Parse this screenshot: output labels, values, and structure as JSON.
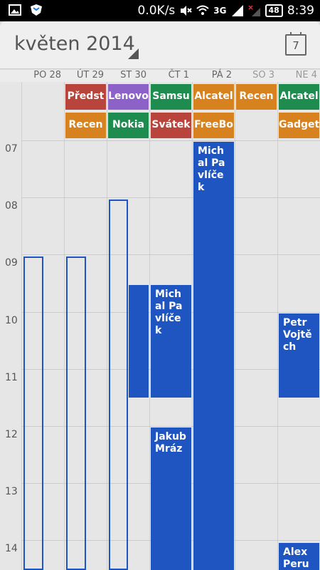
{
  "status_bar": {
    "speed": "0.0K/s",
    "network": "3G",
    "battery": "48",
    "time": "8:39"
  },
  "header": {
    "title": "květen 2014",
    "today_day": "7"
  },
  "days": [
    "PO 28",
    "ÚT 29",
    "ST 30",
    "ČT 1",
    "PÁ 2",
    "SO 3",
    "NE 4"
  ],
  "time_labels": [
    "07",
    "08",
    "09",
    "10",
    "11",
    "12",
    "13",
    "14"
  ],
  "allday_row1": [
    "Předst",
    "Lenovo",
    "Samsu",
    "Alcatel",
    "Recen",
    "Alcatel"
  ],
  "allday_row2": [
    "Recen",
    "Nokia",
    "Svátek",
    "FreeBo",
    "Gadget"
  ],
  "events": {
    "fri_event": "Michal Pavlíček",
    "thu_event": "Michal Pavlíček",
    "sun_event": "Petr Vojtěch",
    "thu_event2": "Jakub Mráz",
    "sun_event2": "Alex Peruno"
  },
  "colors": {
    "event_blue": "#1e55c0",
    "red": "#b8443b",
    "purple": "#8d62c8",
    "green": "#1f8c4f",
    "orange": "#d7811f"
  }
}
